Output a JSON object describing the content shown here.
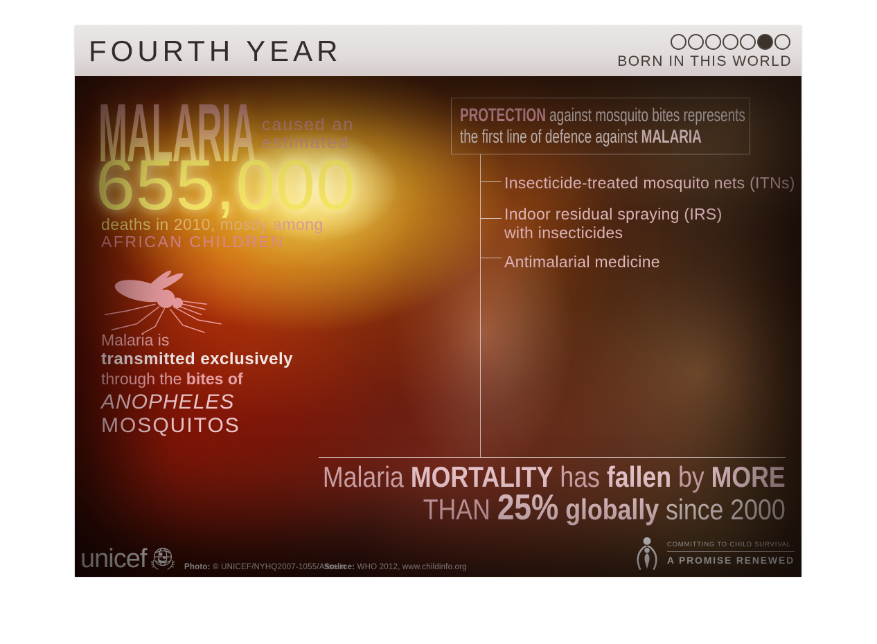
{
  "header": {
    "title": "FOURTH YEAR",
    "series_label": "BORN IN THIS WORLD",
    "progress": {
      "total": 7,
      "filled_index": 5
    }
  },
  "main": {
    "headline": {
      "word": "MALARIA",
      "caused_line1": "caused an",
      "caused_line2": "estimated",
      "number": "655,000",
      "deaths_line1": "deaths in 2010, mostly among",
      "deaths_line2": "AFRICAN CHILDREN"
    },
    "transmission": {
      "line1": "Malaria is",
      "line2": "transmitted exclusively",
      "line3_regular": "through the",
      "line3_bold": "bites of",
      "line4": "ANOPHELES",
      "line5": "MOSQUITOS"
    },
    "protection": {
      "heading_bold1": "PROTECTION",
      "heading_rest1": "against mosquito bites represents",
      "heading_rest2": "the first line of defence against",
      "heading_bold2": "MALARIA",
      "items": [
        {
          "line1": "Insecticide-treated mosquito nets (ITNs)",
          "line2": ""
        },
        {
          "line1": "Indoor residual spraying (IRS)",
          "line2": "with insecticides"
        },
        {
          "line1": "Antimalarial medicine",
          "line2": ""
        }
      ]
    },
    "mortality": {
      "l1_r1": "Malaria",
      "l1_b1": "MORTALITY",
      "l1_r2": "has",
      "l1_b2": "fallen",
      "l1_r3": "by",
      "l1_b3": "MORE",
      "l2_r1": "THAN",
      "l2_big": "25%",
      "l2_b1": "globally",
      "l2_r2": "since 2000"
    }
  },
  "footer": {
    "brand": "unicef",
    "photo_label": "Photo:",
    "photo_text": "© UNICEF/NYHQ2007-1055/Asselin",
    "source_label": "Source:",
    "source_text": "WHO 2012, www.childinfo.org",
    "apr_top": "COMMITTING TO CHILD SURVIVAL",
    "apr_bottom": "A PROMISE RENEWED"
  },
  "colors": {
    "glow_yellow": "#f4e566",
    "accent_pink": "#e8a3a8",
    "red_glow": "#ce2406",
    "header_bg": "#e2dddd",
    "header_text": "#342c28"
  }
}
